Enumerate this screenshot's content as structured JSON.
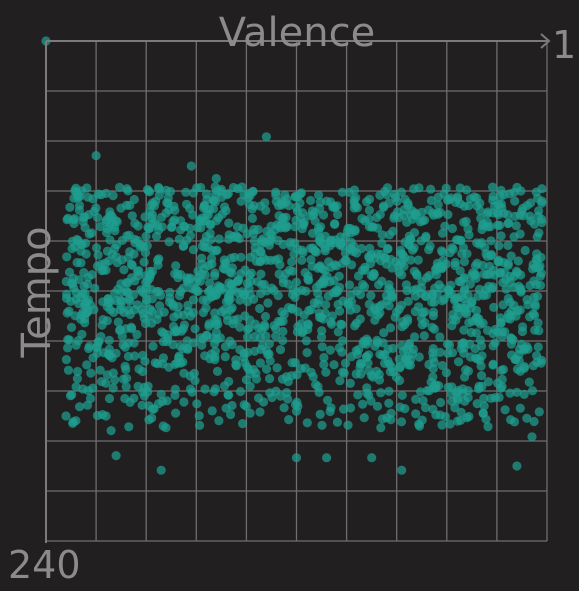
{
  "chart_data": {
    "type": "scatter",
    "title": "",
    "xlabel": "Valence",
    "ylabel": "Tempo",
    "x_axis_position": "top",
    "y_axis_position": "left",
    "xlim": [
      0,
      1
    ],
    "ylim": [
      0,
      240
    ],
    "y_inverted": true,
    "x_ticks": [
      {
        "value": 1,
        "label": "1"
      }
    ],
    "y_ticks": [
      {
        "value": 240,
        "label": "240"
      }
    ],
    "grid": true,
    "grid_divisions": 10,
    "point_color": "#1e9e8f",
    "point_opacity": 0.72,
    "n_points": 1700,
    "bulk_distribution": {
      "x_range": [
        0.04,
        0.99
      ],
      "y_mean": 120,
      "y_std": 35,
      "y_range": [
        70,
        186
      ]
    },
    "notable_points": [
      {
        "x": 0.0,
        "y": 0
      },
      {
        "x": 0.44,
        "y": 46
      },
      {
        "x": 0.1,
        "y": 55
      },
      {
        "x": 0.29,
        "y": 60
      },
      {
        "x": 0.34,
        "y": 66
      },
      {
        "x": 0.23,
        "y": 206
      },
      {
        "x": 0.71,
        "y": 206
      },
      {
        "x": 0.5,
        "y": 200
      },
      {
        "x": 0.56,
        "y": 200
      },
      {
        "x": 0.14,
        "y": 199
      },
      {
        "x": 0.65,
        "y": 200
      },
      {
        "x": 0.94,
        "y": 204
      },
      {
        "x": 0.97,
        "y": 190
      },
      {
        "x": 0.04,
        "y": 180
      },
      {
        "x": 0.06,
        "y": 166
      },
      {
        "x": 0.16,
        "y": 166
      },
      {
        "x": 0.06,
        "y": 146
      },
      {
        "x": 0.06,
        "y": 124
      },
      {
        "x": 0.12,
        "y": 180
      },
      {
        "x": 0.13,
        "y": 187
      }
    ]
  }
}
